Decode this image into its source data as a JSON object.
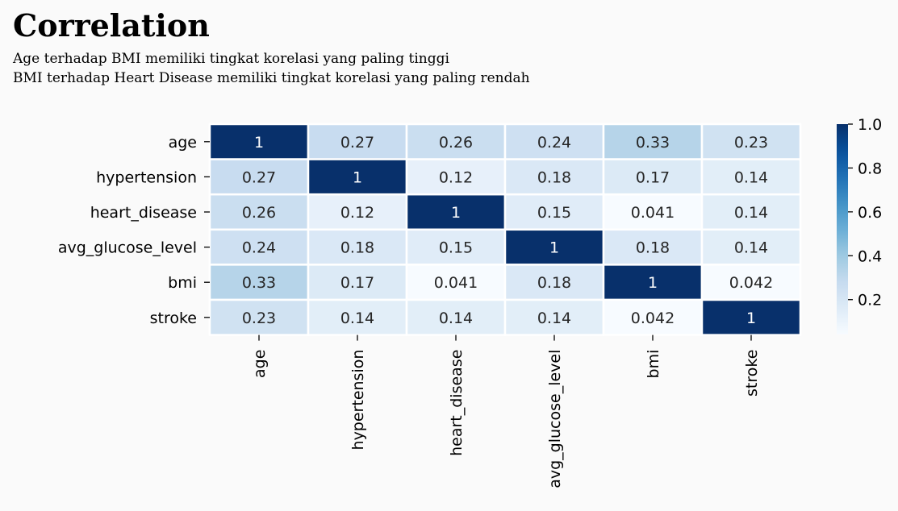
{
  "title": "Correlation",
  "subtitle_lines": [
    "Age terhadap BMI memiliki tingkat korelasi yang paling tinggi",
    "BMI terhadap Heart Disease memiliki tingkat korelasi yang paling rendah"
  ],
  "chart_data": {
    "type": "heatmap",
    "title": "",
    "colormap": "Blues",
    "labels": [
      "age",
      "hypertension",
      "heart_disease",
      "avg_glucose_level",
      "bmi",
      "stroke"
    ],
    "matrix": [
      [
        1,
        0.27,
        0.26,
        0.24,
        0.33,
        0.23
      ],
      [
        0.27,
        1,
        0.12,
        0.18,
        0.17,
        0.14
      ],
      [
        0.26,
        0.12,
        1,
        0.15,
        0.041,
        0.14
      ],
      [
        0.24,
        0.18,
        0.15,
        1,
        0.18,
        0.14
      ],
      [
        0.33,
        0.17,
        0.041,
        0.18,
        1,
        0.042
      ],
      [
        0.23,
        0.14,
        0.14,
        0.14,
        0.042,
        1
      ]
    ],
    "annotations": [
      [
        "1",
        "0.27",
        "0.26",
        "0.24",
        "0.33",
        "0.23"
      ],
      [
        "0.27",
        "1",
        "0.12",
        "0.18",
        "0.17",
        "0.14"
      ],
      [
        "0.26",
        "0.12",
        "1",
        "0.15",
        "0.041",
        "0.14"
      ],
      [
        "0.24",
        "0.18",
        "0.15",
        "1",
        "0.18",
        "0.14"
      ],
      [
        "0.33",
        "0.17",
        "0.041",
        "0.18",
        "1",
        "0.042"
      ],
      [
        "0.23",
        "0.14",
        "0.14",
        "0.14",
        "0.042",
        "1"
      ]
    ],
    "colorbar": {
      "range": [
        0.041,
        1.0
      ],
      "ticks": [
        0.2,
        0.4,
        0.6,
        0.8,
        1.0
      ],
      "tick_labels": [
        "0.2",
        "0.4",
        "0.6",
        "0.8",
        "1.0"
      ]
    },
    "cell_border_color": "#ffffff",
    "colors": {
      "low": "#f7fbff",
      "high": "#08306b",
      "background": "#fafafa"
    }
  }
}
